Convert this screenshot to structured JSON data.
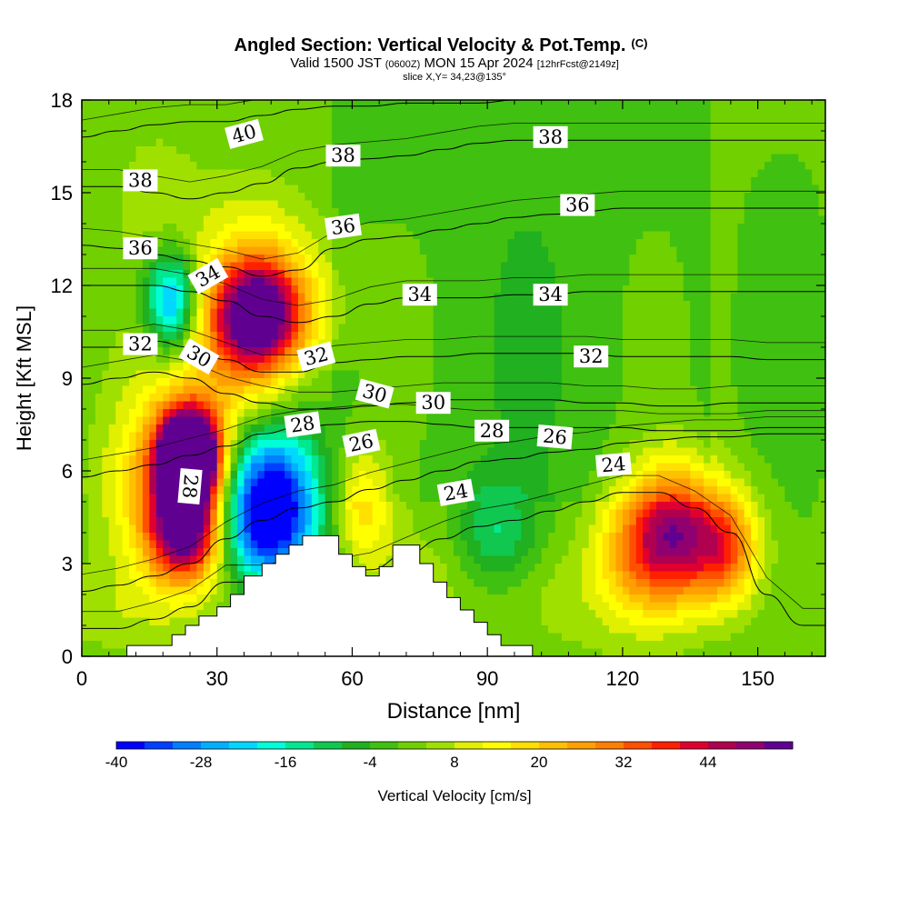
{
  "chart_data": {
    "type": "heatmap",
    "title": "Angled Section: Vertical Velocity & Pot.Temp.",
    "title_unit": "(C)",
    "subtitle_parts": [
      "Valid 1500 JST ",
      "(0600Z)",
      " MON 15 Apr 2024 ",
      "[12hrFcst@2149z]"
    ],
    "slice_label": "slice X,Y= 34,23@135°",
    "xlabel": "Distance [nm]",
    "ylabel": "Height [Kft MSL]",
    "xlim": [
      0,
      165
    ],
    "ylim": [
      0,
      18
    ],
    "x_ticks": [
      "0",
      "30",
      "60",
      "90",
      "120",
      "150"
    ],
    "y_ticks": [
      "0",
      "3",
      "6",
      "9",
      "12",
      "15",
      "18"
    ],
    "grid": false,
    "colorbar": {
      "label": "Vertical Velocity [cm/s]",
      "tick_labels": [
        "-40",
        "-28",
        "-16",
        "-4",
        "8",
        "20",
        "32",
        "44"
      ],
      "colors": [
        "#0000ff",
        "#0040ff",
        "#0080ff",
        "#00b0ff",
        "#00d8ff",
        "#00ffd8",
        "#00e890",
        "#10c850",
        "#20b020",
        "#40c010",
        "#70d000",
        "#a0e000",
        "#e0f000",
        "#ffff00",
        "#ffe000",
        "#ffc000",
        "#ffa000",
        "#ff8000",
        "#ff5000",
        "#ff2000",
        "#e00030",
        "#b00050",
        "#900070",
        "#600090"
      ]
    },
    "blobs": [
      {
        "x": 24,
        "y": 5.5,
        "w": 40,
        "value": 10,
        "rx": 6,
        "ry": 3.2
      },
      {
        "x": 24,
        "y": 5.5,
        "w": 60,
        "value": 32,
        "rx": 4.5,
        "ry": 2.8
      },
      {
        "x": 24,
        "y": 6.5,
        "w": 100,
        "value": 48,
        "rx": 2.2,
        "ry": 1.4
      },
      {
        "x": 23,
        "y": 4,
        "w": 70,
        "value": 36,
        "rx": 2.5,
        "ry": 1.5
      },
      {
        "x": 39,
        "y": 11,
        "w": 80,
        "value": 20,
        "rx": 5,
        "ry": 2.8
      },
      {
        "x": 39,
        "y": 11,
        "w": 90,
        "value": 30,
        "rx": 3.2,
        "ry": 1.8
      },
      {
        "x": 38,
        "y": 14.5,
        "w": 30,
        "value": 8,
        "rx": 4,
        "ry": 2
      },
      {
        "x": 20,
        "y": 11.5,
        "w": 70,
        "value": -28,
        "rx": 2,
        "ry": 1.6
      },
      {
        "x": 17,
        "y": 15,
        "w": 40,
        "value": 6,
        "rx": 3,
        "ry": 2
      },
      {
        "x": 40,
        "y": 4.5,
        "w": 90,
        "value": -36,
        "rx": 4,
        "ry": 2
      },
      {
        "x": 38,
        "y": 6.5,
        "w": 50,
        "value": -20,
        "rx": 5,
        "ry": 1.4
      },
      {
        "x": 62,
        "y": 5,
        "w": 60,
        "value": 18,
        "rx": 2.2,
        "ry": 2
      },
      {
        "x": 92,
        "y": 4,
        "w": 50,
        "value": -16,
        "rx": 3,
        "ry": 1.6
      },
      {
        "x": 123,
        "y": 3.5,
        "w": 60,
        "value": 20,
        "rx": 3,
        "ry": 2.2
      },
      {
        "x": 132,
        "y": 4,
        "w": 80,
        "value": 30,
        "rx": 3,
        "ry": 2.2
      },
      {
        "x": 143,
        "y": 3.5,
        "w": 70,
        "value": 26,
        "rx": 2.5,
        "ry": 1.8
      },
      {
        "x": 110,
        "y": 2,
        "w": 30,
        "value": 10,
        "rx": 6,
        "ry": 2
      },
      {
        "x": 8,
        "y": 1.5,
        "w": 30,
        "value": 10,
        "rx": 5,
        "ry": 1.5
      },
      {
        "x": 75,
        "y": 2.5,
        "w": 30,
        "value": 10,
        "rx": 4,
        "ry": 1.5
      },
      {
        "x": 48,
        "y": 9,
        "w": 25,
        "value": -14,
        "rx": 4,
        "ry": 1.5
      }
    ],
    "terrain": [
      [
        10,
        0.35
      ],
      [
        20,
        0.35
      ],
      [
        20,
        0.7
      ],
      [
        23,
        0.7
      ],
      [
        23,
        1
      ],
      [
        26,
        1
      ],
      [
        26,
        1.3
      ],
      [
        30,
        1.3
      ],
      [
        30,
        1.6
      ],
      [
        33,
        1.6
      ],
      [
        33,
        2
      ],
      [
        36,
        2
      ],
      [
        36,
        2.6
      ],
      [
        40,
        2.6
      ],
      [
        40,
        3
      ],
      [
        43,
        3
      ],
      [
        43,
        3.3
      ],
      [
        46,
        3.3
      ],
      [
        46,
        3.6
      ],
      [
        49,
        3.6
      ],
      [
        49,
        3.9
      ],
      [
        57,
        3.9
      ],
      [
        57,
        3.3
      ],
      [
        60,
        3.3
      ],
      [
        60,
        2.9
      ],
      [
        63,
        2.9
      ],
      [
        63,
        2.6
      ],
      [
        66,
        2.6
      ],
      [
        66,
        2.9
      ],
      [
        69,
        2.9
      ],
      [
        69,
        3.6
      ],
      [
        75,
        3.6
      ],
      [
        75,
        3.0
      ],
      [
        78,
        3.0
      ],
      [
        78,
        2.4
      ],
      [
        81,
        2.4
      ],
      [
        81,
        1.9
      ],
      [
        84,
        1.9
      ],
      [
        84,
        1.5
      ],
      [
        87,
        1.5
      ],
      [
        87,
        1.1
      ],
      [
        90,
        1.1
      ],
      [
        90,
        0.7
      ],
      [
        93,
        0.7
      ],
      [
        93,
        0.35
      ],
      [
        100,
        0.35
      ]
    ],
    "isentropes": [
      {
        "label": "24",
        "ys": [
          0.9,
          0.9,
          1.2,
          1.6,
          2.4,
          2.4,
          2.6,
          2.6,
          2.8,
          3.3,
          3.8,
          4.2,
          4.4,
          4.7,
          5.0,
          5.3,
          5.3,
          4.8,
          4.0,
          2.0,
          1.0,
          1.0
        ]
      },
      {
        "label": "26",
        "ys": [
          2.1,
          2.3,
          2.6,
          3.0,
          3.8,
          4.4,
          4.8,
          5.0,
          5.4,
          5.7,
          6.0,
          6.3,
          6.4,
          6.6,
          6.7,
          6.9,
          7.0,
          7.1,
          7.1,
          7.2,
          7.2,
          7.2
        ]
      },
      {
        "label": "28",
        "ys": [
          5.8,
          6.0,
          6.2,
          6.5,
          6.8,
          7.2,
          7.4,
          7.5,
          7.6,
          7.6,
          7.5,
          7.4,
          7.4,
          7.4,
          7.4,
          7.4,
          7.3,
          7.3,
          7.3,
          7.4,
          7.4,
          7.4
        ]
      },
      {
        "label": "30",
        "ys": [
          8.8,
          9.0,
          9.2,
          9.0,
          8.5,
          8.2,
          8.0,
          8.0,
          8.1,
          8.2,
          8.3,
          8.3,
          8.3,
          8.3,
          8.2,
          8.2,
          8.1,
          8.1,
          8.2,
          8.2,
          8.2,
          8.2
        ]
      },
      {
        "label": "32",
        "ys": [
          10.0,
          10.0,
          10.2,
          10.0,
          9.6,
          9.2,
          9.2,
          9.5,
          9.6,
          9.7,
          9.7,
          9.8,
          9.8,
          9.8,
          9.8,
          9.7,
          9.7,
          9.7,
          9.7,
          9.6,
          9.6,
          9.6
        ]
      },
      {
        "label": "34",
        "ys": [
          12.0,
          12.0,
          12.0,
          11.8,
          11.5,
          11.0,
          10.8,
          11.0,
          11.4,
          11.6,
          11.6,
          11.6,
          11.7,
          11.7,
          11.8,
          11.8,
          11.8,
          11.8,
          11.8,
          11.8,
          11.8,
          11.8
        ]
      },
      {
        "label": "36",
        "ys": [
          13.3,
          13.2,
          13.0,
          12.8,
          12.6,
          12.3,
          12.5,
          13.2,
          13.5,
          13.6,
          13.8,
          14.0,
          14.2,
          14.3,
          14.4,
          14.5,
          14.5,
          14.5,
          14.5,
          14.5,
          14.5,
          14.5
        ]
      },
      {
        "label": "38",
        "ys": [
          15.2,
          15.2,
          15.0,
          14.8,
          15.0,
          15.3,
          15.8,
          16.0,
          16.1,
          16.2,
          16.4,
          16.6,
          16.7,
          16.7,
          16.7,
          16.7,
          16.7,
          16.7,
          16.7,
          16.7,
          16.7,
          16.7
        ]
      },
      {
        "label": "40",
        "ys": [
          16.8,
          17.0,
          17.2,
          17.3,
          17.3,
          17.5,
          17.7,
          17.8,
          17.8,
          17.9,
          17.9,
          17.9,
          18.0,
          18.0,
          18.0,
          18.0,
          18.0,
          18.0,
          18.0,
          18.0,
          18.0,
          18.0
        ]
      }
    ],
    "contour_labels": [
      {
        "text": "40",
        "x": 36,
        "y": 16.9,
        "angle": -15
      },
      {
        "text": "38",
        "x": 13,
        "y": 15.4,
        "angle": 0
      },
      {
        "text": "38",
        "x": 58,
        "y": 16.2,
        "angle": 0
      },
      {
        "text": "38",
        "x": 104,
        "y": 16.8,
        "angle": 0
      },
      {
        "text": "36",
        "x": 13,
        "y": 13.2,
        "angle": 0
      },
      {
        "text": "36",
        "x": 58,
        "y": 13.9,
        "angle": -8
      },
      {
        "text": "36",
        "x": 110,
        "y": 14.6,
        "angle": 0
      },
      {
        "text": "34",
        "x": 28,
        "y": 12.3,
        "angle": -30
      },
      {
        "text": "34",
        "x": 75,
        "y": 11.7,
        "angle": 0
      },
      {
        "text": "34",
        "x": 104,
        "y": 11.7,
        "angle": 0
      },
      {
        "text": "32",
        "x": 13,
        "y": 10.1,
        "angle": 0
      },
      {
        "text": "32",
        "x": 52,
        "y": 9.7,
        "angle": -15
      },
      {
        "text": "32",
        "x": 113,
        "y": 9.7,
        "angle": 0
      },
      {
        "text": "30",
        "x": 26,
        "y": 9.7,
        "angle": 30
      },
      {
        "text": "30",
        "x": 65,
        "y": 8.5,
        "angle": 15
      },
      {
        "text": "30",
        "x": 78,
        "y": 8.2,
        "angle": 0
      },
      {
        "text": "28",
        "x": 49,
        "y": 7.5,
        "angle": -8
      },
      {
        "text": "28",
        "x": 91,
        "y": 7.3,
        "angle": 0
      },
      {
        "text": "28",
        "x": 24,
        "y": 5.5,
        "angle": 95
      },
      {
        "text": "26",
        "x": 62,
        "y": 6.9,
        "angle": -12
      },
      {
        "text": "26",
        "x": 105,
        "y": 7.1,
        "angle": 5
      },
      {
        "text": "24",
        "x": 83,
        "y": 5.3,
        "angle": -10
      },
      {
        "text": "24",
        "x": 118,
        "y": 6.2,
        "angle": -5
      }
    ]
  }
}
